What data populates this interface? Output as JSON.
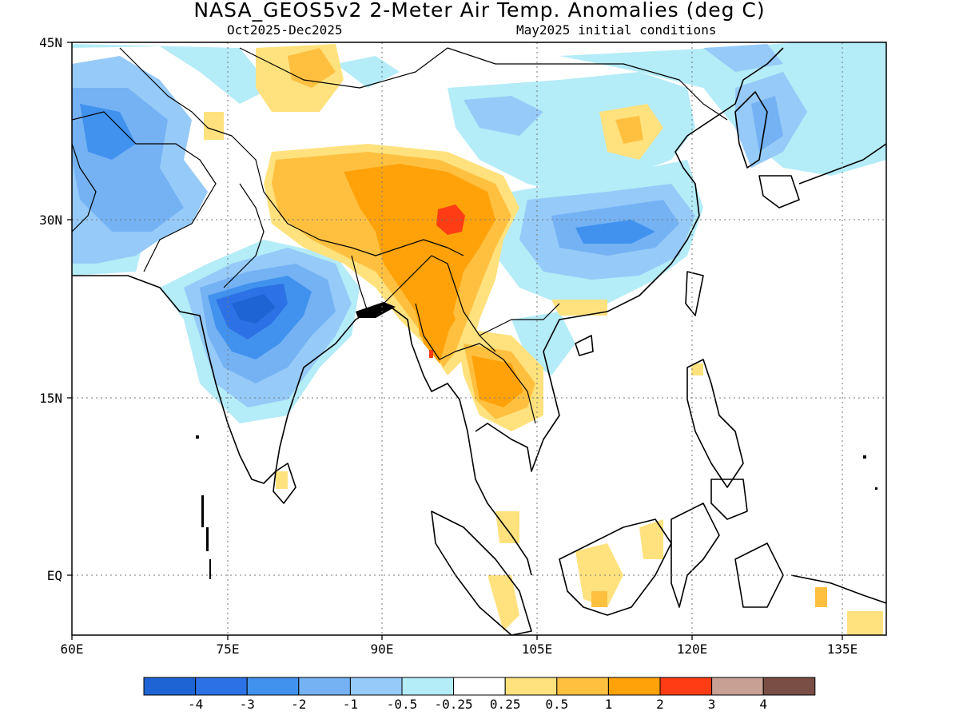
{
  "title": "NASA_GEOS5v2 2-Meter Air Temp. Anomalies (deg C)",
  "subtitle_left": "Oct2025-Dec2025",
  "subtitle_right": "May2025 initial conditions",
  "axes": {
    "lon_ticks": [
      "60E",
      "75E",
      "90E",
      "105E",
      "120E",
      "135E"
    ],
    "lat_ticks": [
      "45N",
      "30N",
      "15N",
      "EQ"
    ],
    "lon_range": [
      60,
      138
    ],
    "lat_range": [
      -5,
      45
    ],
    "grid": "dotted"
  },
  "colorbar": {
    "levels": [
      "-4",
      "-3",
      "-2",
      "-1",
      "-0.5",
      "-0.25",
      "0.25",
      "0.5",
      "1",
      "2",
      "3",
      "4"
    ],
    "colors": [
      "#1e64d4",
      "#2c72e6",
      "#4192ee",
      "#74b2f4",
      "#96caf8",
      "#b4ecf8",
      "#ffffff",
      "#ffe27e",
      "#ffc040",
      "#ffa20a",
      "#ff3c14",
      "#c8a094",
      "#7a4e44"
    ]
  }
}
